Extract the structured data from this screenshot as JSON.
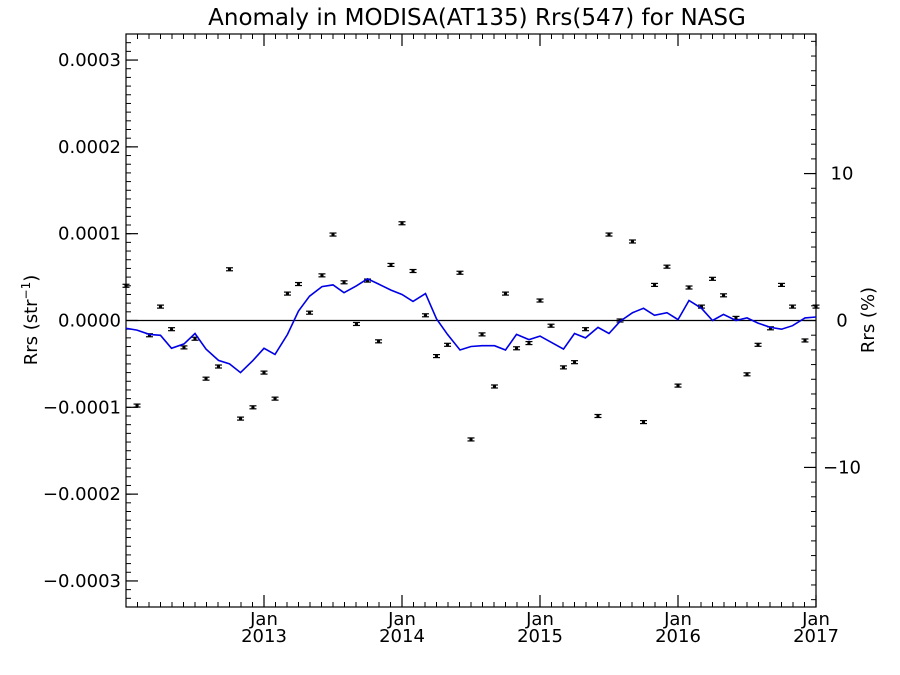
{
  "chart_data": {
    "type": "scatter",
    "title": "Anomaly in MODISA(AT135) Rrs(547) for NASG",
    "ylabel_left": {
      "base": "Rrs (str",
      "sup": "−1",
      "tail": ")"
    },
    "ylabel_right": "Rrs (%)",
    "xlim": [
      2012.0,
      2017.0
    ],
    "ylim": [
      -0.00033,
      0.00033
    ],
    "right_ylim": [
      -19.5,
      19.5
    ],
    "grid": false,
    "x_ticks": [
      {
        "x": 2013.0,
        "line1": "Jan",
        "line2": "2013"
      },
      {
        "x": 2014.0,
        "line1": "Jan",
        "line2": "2014"
      },
      {
        "x": 2015.0,
        "line1": "Jan",
        "line2": "2015"
      },
      {
        "x": 2016.0,
        "line1": "Jan",
        "line2": "2016"
      },
      {
        "x": 2017.0,
        "line1": "Jan",
        "line2": "2017"
      }
    ],
    "y_ticks_left": [
      {
        "v": 0.0003,
        "label": "0.0003"
      },
      {
        "v": 0.0002,
        "label": "0.0002"
      },
      {
        "v": 0.0001,
        "label": "0.0001"
      },
      {
        "v": 0.0,
        "label": "0.0000"
      },
      {
        "v": -0.0001,
        "label": "−0.0001"
      },
      {
        "v": -0.0002,
        "label": "−0.0002"
      },
      {
        "v": -0.0003,
        "label": "−0.0003"
      }
    ],
    "y_ticks_right": [
      {
        "v": 10,
        "label": "10"
      },
      {
        "v": 0,
        "label": "0"
      },
      {
        "v": -10,
        "label": "−10"
      }
    ],
    "zero_line": 0.0,
    "series": [
      {
        "type": "scatter_errorbar",
        "color": "#000000",
        "x": [
          2012.0,
          2012.08,
          2012.17,
          2012.25,
          2012.33,
          2012.42,
          2012.5,
          2012.58,
          2012.67,
          2012.75,
          2012.83,
          2012.92,
          2013.0,
          2013.08,
          2013.17,
          2013.25,
          2013.33,
          2013.42,
          2013.5,
          2013.58,
          2013.67,
          2013.75,
          2013.83,
          2013.92,
          2014.0,
          2014.08,
          2014.17,
          2014.25,
          2014.33,
          2014.42,
          2014.5,
          2014.58,
          2014.67,
          2014.75,
          2014.83,
          2014.92,
          2015.0,
          2015.08,
          2015.17,
          2015.25,
          2015.33,
          2015.42,
          2015.5,
          2015.58,
          2015.67,
          2015.75,
          2015.83,
          2015.92,
          2016.0,
          2016.08,
          2016.17,
          2016.25,
          2016.33,
          2016.42,
          2016.5,
          2016.58,
          2016.67,
          2016.75,
          2016.83,
          2016.92,
          2017.0
        ],
        "y": [
          4e-05,
          -9.8e-05,
          -1.7e-05,
          1.6e-05,
          -1e-05,
          -3.1e-05,
          -2.1e-05,
          -6.7e-05,
          -5.3e-05,
          5.9e-05,
          -0.000113,
          -0.0001,
          -6e-05,
          -9e-05,
          3.1e-05,
          4.2e-05,
          9e-06,
          5.2e-05,
          9.9e-05,
          4.4e-05,
          -4e-06,
          4.6e-05,
          -2.4e-05,
          6.4e-05,
          0.000112,
          5.7e-05,
          6e-06,
          -4.1e-05,
          -2.8e-05,
          5.5e-05,
          -0.000137,
          -1.6e-05,
          -7.6e-05,
          3.1e-05,
          -3.2e-05,
          -2.6e-05,
          2.3e-05,
          -6e-06,
          -5.4e-05,
          -4.8e-05,
          -1e-05,
          -0.00011,
          9.9e-05,
          0.0,
          9.1e-05,
          -0.000117,
          4.1e-05,
          6.2e-05,
          -7.5e-05,
          3.8e-05,
          1.6e-05,
          4.8e-05,
          2.9e-05,
          3e-06,
          -6.2e-05,
          -2.8e-05,
          -9e-06,
          4.1e-05,
          1.6e-05,
          -2.3e-05,
          1.6e-05
        ],
        "err": 1.5e-06
      },
      {
        "type": "line",
        "color": "#0000e6",
        "x": [
          2012.0,
          2012.08,
          2012.17,
          2012.25,
          2012.33,
          2012.42,
          2012.5,
          2012.58,
          2012.67,
          2012.75,
          2012.83,
          2012.92,
          2013.0,
          2013.08,
          2013.17,
          2013.25,
          2013.33,
          2013.42,
          2013.5,
          2013.58,
          2013.67,
          2013.75,
          2013.83,
          2013.92,
          2014.0,
          2014.08,
          2014.17,
          2014.25,
          2014.33,
          2014.42,
          2014.5,
          2014.58,
          2014.67,
          2014.75,
          2014.83,
          2014.92,
          2015.0,
          2015.08,
          2015.17,
          2015.25,
          2015.33,
          2015.42,
          2015.5,
          2015.58,
          2015.67,
          2015.75,
          2015.83,
          2015.92,
          2016.0,
          2016.08,
          2016.17,
          2016.25,
          2016.33,
          2016.42,
          2016.5,
          2016.58,
          2016.67,
          2016.75,
          2016.83,
          2016.92,
          2017.0
        ],
        "y": [
          -9e-06,
          -1.1e-05,
          -1.6e-05,
          -1.7e-05,
          -3.2e-05,
          -2.7e-05,
          -1.5e-05,
          -3.3e-05,
          -4.6e-05,
          -5e-05,
          -6e-05,
          -4.6e-05,
          -3.2e-05,
          -3.9e-05,
          -1.6e-05,
          1.1e-05,
          2.8e-05,
          3.9e-05,
          4.1e-05,
          3.2e-05,
          4e-05,
          4.8e-05,
          4.2e-05,
          3.5e-05,
          3e-05,
          2.2e-05,
          3.1e-05,
          2e-06,
          -1.6e-05,
          -3.4e-05,
          -3e-05,
          -2.9e-05,
          -2.9e-05,
          -3.4e-05,
          -1.6e-05,
          -2.2e-05,
          -1.8e-05,
          -2.5e-05,
          -3.3e-05,
          -1.5e-05,
          -2e-05,
          -8e-06,
          -1.5e-05,
          -1e-06,
          9e-06,
          1.4e-05,
          6e-06,
          9e-06,
          1e-06,
          2.3e-05,
          1.4e-05,
          0.0,
          7e-06,
          0.0,
          3e-06,
          -3e-06,
          -8e-06,
          -1e-05,
          -6e-06,
          3e-06,
          4e-06
        ]
      }
    ]
  }
}
